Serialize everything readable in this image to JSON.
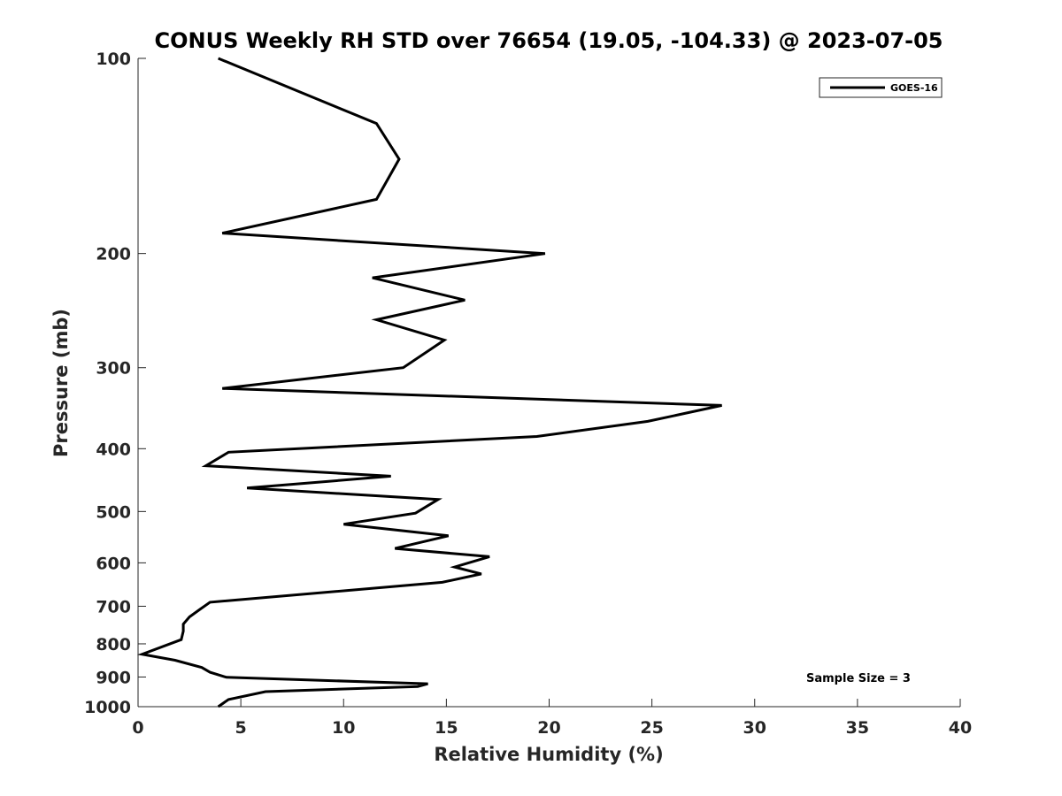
{
  "chart_data": {
    "type": "line",
    "title": "CONUS Weekly RH STD over 76654 (19.05, -104.33) @ 2023-07-05",
    "xlabel": "Relative Humidity (%)",
    "ylabel": "Pressure (mb)",
    "xlim": [
      0,
      40
    ],
    "ylim": [
      100,
      1000
    ],
    "y_scale": "log",
    "y_reversed": true,
    "xticks": [
      "0",
      "5",
      "10",
      "15",
      "20",
      "25",
      "30",
      "35",
      "40"
    ],
    "yticks": [
      "100",
      "200",
      "300",
      "400",
      "500",
      "600",
      "700",
      "800",
      "900",
      "1000"
    ],
    "grid": false,
    "legend_position": "top-right",
    "annotation": "Sample Size = 3",
    "series": [
      {
        "name": "GOES-16",
        "color": "#000000",
        "points": [
          [
            3.9,
            100
          ],
          [
            11.6,
            126
          ],
          [
            12.7,
            143
          ],
          [
            11.6,
            165
          ],
          [
            4.1,
            186
          ],
          [
            19.8,
            200
          ],
          [
            11.4,
            218
          ],
          [
            15.9,
            236
          ],
          [
            11.6,
            253
          ],
          [
            14.9,
            272
          ],
          [
            12.9,
            300
          ],
          [
            4.1,
            323
          ],
          [
            28.4,
            343
          ],
          [
            24.8,
            363
          ],
          [
            19.4,
            383
          ],
          [
            4.4,
            405
          ],
          [
            3.3,
            425
          ],
          [
            12.3,
            441
          ],
          [
            5.3,
            460
          ],
          [
            14.6,
            479
          ],
          [
            13.5,
            503
          ],
          [
            10.0,
            523
          ],
          [
            15.1,
            545
          ],
          [
            12.5,
            570
          ],
          [
            17.1,
            587
          ],
          [
            15.4,
            609
          ],
          [
            16.7,
            624
          ],
          [
            14.8,
            643
          ],
          [
            3.5,
            690
          ],
          [
            3.0,
            708
          ],
          [
            2.5,
            727
          ],
          [
            2.2,
            746
          ],
          [
            2.2,
            765
          ],
          [
            2.1,
            788
          ],
          [
            0.2,
            830
          ],
          [
            1.8,
            848
          ],
          [
            3.1,
            870
          ],
          [
            3.5,
            885
          ],
          [
            4.3,
            901
          ],
          [
            14.1,
            922
          ],
          [
            13.6,
            931
          ],
          [
            6.2,
            948
          ],
          [
            4.4,
            975
          ],
          [
            3.9,
            1000
          ]
        ]
      }
    ]
  }
}
